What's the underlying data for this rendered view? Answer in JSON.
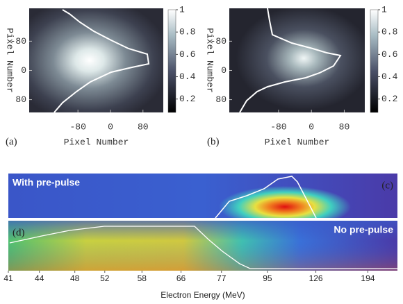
{
  "chart_data": [
    {
      "type": "heatmap",
      "panel_label": "(a)",
      "xlabel": "Pixel Number",
      "ylabel": "Pixel Number",
      "xlim": [
        -200,
        130
      ],
      "ylim": [
        -170,
        115
      ],
      "xticks": [
        -80,
        0,
        80
      ],
      "yticks": [
        -80,
        0,
        80
      ],
      "clim": [
        0.08,
        1
      ],
      "colorbar_ticks": [
        0.2,
        0.4,
        0.6,
        0.8,
        1
      ]
    },
    {
      "type": "heatmap",
      "panel_label": "(b)",
      "xlabel": "Pixel Number",
      "ylabel": "Pixel Number",
      "xlim": [
        -200,
        130
      ],
      "ylim": [
        -170,
        115
      ],
      "xticks": [
        -80,
        0,
        80
      ],
      "yticks": [
        -80,
        0,
        80
      ],
      "clim": [
        0.08,
        1
      ],
      "colorbar_ticks": [
        0.2,
        0.4,
        0.6,
        0.8,
        1
      ]
    },
    {
      "type": "spectrum",
      "xlabel": "Electron Energy (MeV)",
      "xscale": "inverse",
      "xlim": [
        41,
        280
      ],
      "xticks": [
        41,
        44,
        48,
        52,
        58,
        66,
        77,
        95,
        126,
        194
      ],
      "panels": [
        {
          "label": "(c)",
          "annotation": "With pre-pulse"
        },
        {
          "label": "(d)",
          "annotation": "No pre-pulse"
        }
      ]
    }
  ]
}
